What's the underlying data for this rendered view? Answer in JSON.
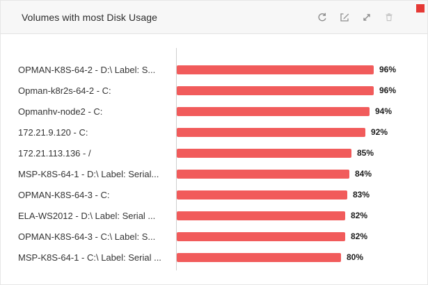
{
  "widget": {
    "title": "Volumes with most Disk Usage",
    "icons": [
      "refresh-icon",
      "edit-icon",
      "expand-icon",
      "trash-icon"
    ],
    "badge_color": "#e53935"
  },
  "chart_data": {
    "type": "bar",
    "orientation": "horizontal",
    "title": "Volumes with most Disk Usage",
    "xlabel": "",
    "ylabel": "",
    "unit": "%",
    "xlim": [
      0,
      100
    ],
    "grid": false,
    "legend": false,
    "bar_color": "#f15b5b",
    "categories": [
      "OPMAN-K8S-64-2 - D:\\ Label: S...",
      "Opman-k8r2s-64-2 - C:",
      "Opmanhv-node2 - C:",
      "172.21.9.120 - C:",
      "172.21.113.136 - /",
      "MSP-K8S-64-1 - D:\\ Label: Serial...",
      "OPMAN-K8S-64-3 - C:",
      "ELA-WS2012 - D:\\ Label: Serial ...",
      "OPMAN-K8S-64-3 - C:\\ Label: S...",
      "MSP-K8S-64-1 - C:\\ Label: Serial ..."
    ],
    "values": [
      96,
      96,
      94,
      92,
      85,
      84,
      83,
      82,
      82,
      80
    ],
    "value_labels": [
      "96%",
      "96%",
      "94%",
      "92%",
      "85%",
      "84%",
      "83%",
      "82%",
      "82%",
      "80%"
    ]
  }
}
